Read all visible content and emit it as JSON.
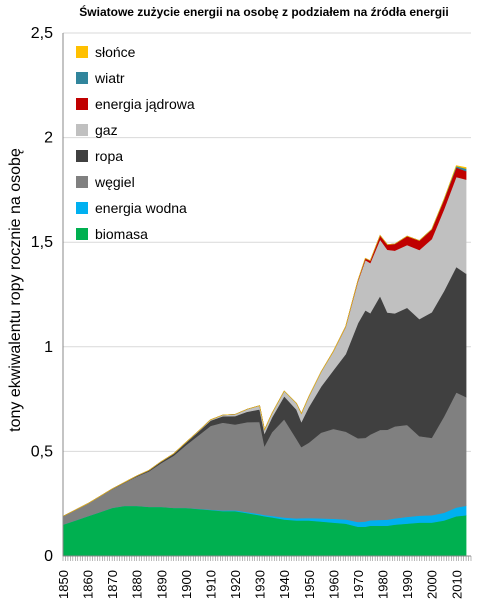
{
  "chart_data": {
    "type": "area",
    "stacked": true,
    "title": "Światowe zużycie energii na osobę z podziałem na źródła energii",
    "ylabel": "tony ekwiwalentu ropy rocznie na osobę",
    "xlabel": "",
    "xlim": [
      1850,
      2016
    ],
    "ylim": [
      0,
      2.5
    ],
    "grid": true,
    "legend_position": "top-left",
    "x_ticks": [
      "1850",
      "1860",
      "1870",
      "1880",
      "1890",
      "1900",
      "1910",
      "1920",
      "1930",
      "1940",
      "1950",
      "1960",
      "1970",
      "1980",
      "1990",
      "2000",
      "2010"
    ],
    "y_ticks": [
      "0",
      "0,5",
      "1",
      "1,5",
      "2",
      "2,5"
    ],
    "x": [
      1850,
      1855,
      1860,
      1865,
      1870,
      1875,
      1880,
      1885,
      1890,
      1895,
      1900,
      1905,
      1910,
      1915,
      1920,
      1925,
      1930,
      1932,
      1935,
      1940,
      1945,
      1947,
      1950,
      1955,
      1960,
      1965,
      1970,
      1973,
      1975,
      1979,
      1982,
      1985,
      1990,
      1995,
      2000,
      2005,
      2010,
      2014
    ],
    "series": [
      {
        "name": "biomasa",
        "color": "#00b050",
        "values": [
          0.15,
          0.17,
          0.19,
          0.21,
          0.23,
          0.24,
          0.24,
          0.235,
          0.235,
          0.23,
          0.23,
          0.225,
          0.22,
          0.215,
          0.215,
          0.205,
          0.195,
          0.19,
          0.185,
          0.175,
          0.17,
          0.17,
          0.17,
          0.165,
          0.16,
          0.155,
          0.14,
          0.14,
          0.145,
          0.145,
          0.145,
          0.15,
          0.155,
          0.16,
          0.16,
          0.17,
          0.19,
          0.195
        ]
      },
      {
        "name": "energia wodna",
        "color": "#00b0f0",
        "values": [
          0,
          0,
          0,
          0,
          0,
          0,
          0,
          0,
          0,
          0,
          0,
          0.001,
          0.002,
          0.003,
          0.004,
          0.005,
          0.006,
          0.006,
          0.007,
          0.009,
          0.01,
          0.011,
          0.012,
          0.015,
          0.018,
          0.02,
          0.023,
          0.025,
          0.026,
          0.028,
          0.029,
          0.03,
          0.032,
          0.033,
          0.035,
          0.037,
          0.042,
          0.045
        ]
      },
      {
        "name": "węgiel",
        "color": "#808080",
        "values": [
          0.04,
          0.05,
          0.06,
          0.075,
          0.09,
          0.11,
          0.14,
          0.17,
          0.21,
          0.25,
          0.3,
          0.35,
          0.4,
          0.42,
          0.41,
          0.43,
          0.44,
          0.33,
          0.4,
          0.47,
          0.38,
          0.34,
          0.36,
          0.41,
          0.43,
          0.42,
          0.4,
          0.4,
          0.41,
          0.43,
          0.43,
          0.44,
          0.44,
          0.38,
          0.37,
          0.46,
          0.55,
          0.52
        ]
      },
      {
        "name": "ropa",
        "color": "#404040",
        "values": [
          0,
          0,
          0,
          0,
          0.001,
          0.002,
          0.003,
          0.005,
          0.007,
          0.009,
          0.012,
          0.018,
          0.025,
          0.03,
          0.04,
          0.05,
          0.06,
          0.06,
          0.07,
          0.11,
          0.14,
          0.12,
          0.17,
          0.22,
          0.28,
          0.37,
          0.55,
          0.61,
          0.58,
          0.64,
          0.56,
          0.54,
          0.56,
          0.56,
          0.6,
          0.6,
          0.6,
          0.59
        ]
      },
      {
        "name": "gaz",
        "color": "#c0c0c0",
        "values": [
          0,
          0,
          0,
          0,
          0,
          0,
          0,
          0,
          0,
          0,
          0.001,
          0.002,
          0.004,
          0.006,
          0.008,
          0.012,
          0.018,
          0.018,
          0.02,
          0.025,
          0.03,
          0.04,
          0.05,
          0.07,
          0.09,
          0.13,
          0.2,
          0.24,
          0.24,
          0.27,
          0.3,
          0.3,
          0.3,
          0.33,
          0.35,
          0.39,
          0.43,
          0.45
        ]
      },
      {
        "name": "energia jądrowa",
        "color": "#c00000",
        "values": [
          0,
          0,
          0,
          0,
          0,
          0,
          0,
          0,
          0,
          0,
          0,
          0,
          0,
          0,
          0,
          0,
          0,
          0,
          0,
          0,
          0,
          0,
          0,
          0,
          0.001,
          0.002,
          0.005,
          0.008,
          0.011,
          0.02,
          0.025,
          0.032,
          0.042,
          0.045,
          0.046,
          0.046,
          0.045,
          0.04
        ]
      },
      {
        "name": "wiatr",
        "color": "#31859c",
        "values": [
          0,
          0,
          0,
          0,
          0,
          0,
          0,
          0,
          0,
          0,
          0,
          0,
          0,
          0,
          0,
          0,
          0,
          0,
          0,
          0,
          0,
          0,
          0,
          0,
          0,
          0,
          0,
          0,
          0,
          0,
          0,
          0,
          0,
          0,
          0.001,
          0.002,
          0.007,
          0.012
        ]
      },
      {
        "name": "słońce",
        "color": "#ffc000",
        "values": [
          0,
          0,
          0,
          0,
          0,
          0,
          0,
          0,
          0,
          0,
          0,
          0,
          0,
          0,
          0,
          0,
          0,
          0,
          0,
          0,
          0,
          0,
          0,
          0,
          0,
          0,
          0,
          0,
          0,
          0,
          0,
          0,
          0,
          0,
          0,
          0.0005,
          0.002,
          0.005
        ]
      }
    ]
  }
}
